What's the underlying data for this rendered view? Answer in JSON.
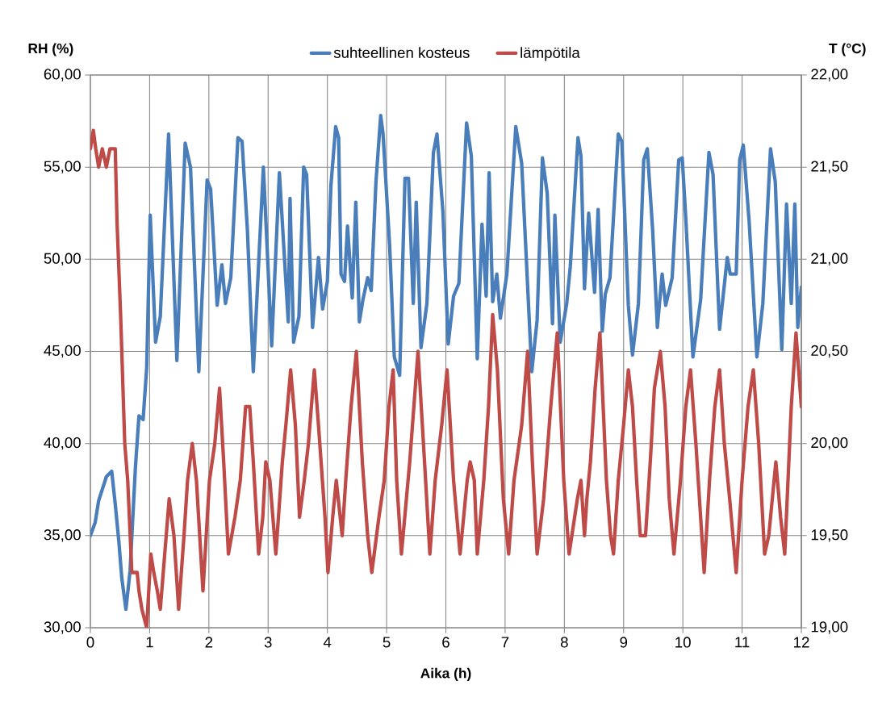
{
  "chart_data": {
    "type": "line",
    "xlabel": "Aika (h)",
    "ylabel": "RH (%)",
    "y2label": "T (°C)",
    "xlim": [
      0,
      12
    ],
    "xticks": [
      0,
      1,
      2,
      3,
      4,
      5,
      6,
      7,
      8,
      9,
      10,
      11,
      12
    ],
    "ylim": [
      30,
      60
    ],
    "yticks": [
      {
        "value": 30,
        "label": "30,00"
      },
      {
        "value": 35,
        "label": "35,00"
      },
      {
        "value": 40,
        "label": "40,00"
      },
      {
        "value": 45,
        "label": "45,00"
      },
      {
        "value": 50,
        "label": "50,00"
      },
      {
        "value": 55,
        "label": "55,00"
      },
      {
        "value": 60,
        "label": "60,00"
      }
    ],
    "y2lim": [
      19,
      22
    ],
    "y2ticks": [
      {
        "value": 19,
        "label": "19,00"
      },
      {
        "value": 19.5,
        "label": "19,50"
      },
      {
        "value": 20,
        "label": "20,00"
      },
      {
        "value": 20.5,
        "label": "20,50"
      },
      {
        "value": 21,
        "label": "21,00"
      },
      {
        "value": 21.5,
        "label": "21,50"
      },
      {
        "value": 22,
        "label": "22,00"
      }
    ],
    "grid": true,
    "legend": "top",
    "marker": "none",
    "line_style": "solid",
    "series": [
      {
        "name": "suhteellinen kosteus",
        "color": "#4a7ebb",
        "x": [
          0,
          0.08,
          0.14,
          0.27,
          0.36,
          0.42,
          0.48,
          0.53,
          0.6,
          0.67,
          0.76,
          0.82,
          0.89,
          0.95,
          1.01,
          1.1,
          1.18,
          1.32,
          1.46,
          1.6,
          1.69,
          1.83,
          1.97,
          2.03,
          2.14,
          2.22,
          2.28,
          2.37,
          2.49,
          2.56,
          2.65,
          2.75,
          2.92,
          3.06,
          3.19,
          3.34,
          3.37,
          3.43,
          3.52,
          3.6,
          3.65,
          3.75,
          3.85,
          3.92,
          4.0,
          4.06,
          4.14,
          4.19,
          4.23,
          4.29,
          4.34,
          4.42,
          4.48,
          4.54,
          4.6,
          4.68,
          4.74,
          4.82,
          4.9,
          4.94,
          5.05,
          5.13,
          5.22,
          5.31,
          5.37,
          5.45,
          5.5,
          5.58,
          5.68,
          5.79,
          5.85,
          5.95,
          6.04,
          6.13,
          6.22,
          6.35,
          6.43,
          6.53,
          6.61,
          6.68,
          6.73,
          6.79,
          6.86,
          6.92,
          7.03,
          7.18,
          7.28,
          7.45,
          7.54,
          7.63,
          7.71,
          7.8,
          7.84,
          7.93,
          8.04,
          8.1,
          8.23,
          8.28,
          8.34,
          8.41,
          8.51,
          8.57,
          8.64,
          8.69,
          8.77,
          8.91,
          8.97,
          9.08,
          9.15,
          9.25,
          9.34,
          9.4,
          9.49,
          9.57,
          9.65,
          9.71,
          9.82,
          9.93,
          9.99,
          10.05,
          10.17,
          10.3,
          10.44,
          10.51,
          10.62,
          10.75,
          10.8,
          10.9,
          10.96,
          11.02,
          11.12,
          11.25,
          11.35,
          11.48,
          11.56,
          11.67,
          11.75,
          11.83,
          11.89,
          11.94,
          12.0
        ],
        "values": [
          35.0,
          35.7,
          36.9,
          38.2,
          38.5,
          36.7,
          34.7,
          32.7,
          31.0,
          33.1,
          38.7,
          41.5,
          41.3,
          44.1,
          52.4,
          45.5,
          46.9,
          56.8,
          44.5,
          56.3,
          55.0,
          43.9,
          54.3,
          53.8,
          47.5,
          49.7,
          47.6,
          49.0,
          56.6,
          56.4,
          51.6,
          43.9,
          55.0,
          45.3,
          54.7,
          46.6,
          53.3,
          45.5,
          46.9,
          55.0,
          54.6,
          46.3,
          50.1,
          47.3,
          48.8,
          54.0,
          57.2,
          56.6,
          49.2,
          48.8,
          51.8,
          47.9,
          53.1,
          46.6,
          47.8,
          49.0,
          48.3,
          54.2,
          57.8,
          56.8,
          50.8,
          44.7,
          43.7,
          54.4,
          54.4,
          47.6,
          53.1,
          45.2,
          47.6,
          55.8,
          56.8,
          52.6,
          45.4,
          48.0,
          48.7,
          57.4,
          55.6,
          44.6,
          51.9,
          48.0,
          54.7,
          47.7,
          49.2,
          46.8,
          49.2,
          57.2,
          55.2,
          43.9,
          46.7,
          55.5,
          53.6,
          46.5,
          52.4,
          45.5,
          47.6,
          49.6,
          56.6,
          55.6,
          48.4,
          52.5,
          48.2,
          52.7,
          46.1,
          48.1,
          49.0,
          56.8,
          56.4,
          47.5,
          44.8,
          47.6,
          55.4,
          56.0,
          51.6,
          46.3,
          49.2,
          47.5,
          49.0,
          55.4,
          55.5,
          52.2,
          44.7,
          47.8,
          55.8,
          54.6,
          46.2,
          50.1,
          49.2,
          49.2,
          55.4,
          56.2,
          52.0,
          44.7,
          47.6,
          56.0,
          54.2,
          45.1,
          53.0,
          47.6,
          53.0,
          46.3,
          48.5
        ]
      },
      {
        "name": "lämpötila",
        "color": "#be4b48",
        "axis": "y2",
        "x": [
          0,
          0.05,
          0.09,
          0.14,
          0.2,
          0.27,
          0.33,
          0.42,
          0.45,
          0.51,
          0.58,
          0.63,
          0.7,
          0.79,
          0.82,
          0.87,
          0.95,
          1.02,
          1.07,
          1.13,
          1.18,
          1.23,
          1.33,
          1.41,
          1.49,
          1.58,
          1.64,
          1.72,
          1.79,
          1.9,
          2.01,
          2.1,
          2.18,
          2.25,
          2.33,
          2.44,
          2.53,
          2.62,
          2.69,
          2.75,
          2.84,
          2.91,
          2.96,
          3.03,
          3.13,
          3.24,
          3.3,
          3.38,
          3.46,
          3.53,
          3.61,
          3.68,
          3.78,
          3.85,
          3.96,
          4.01,
          4.09,
          4.15,
          4.25,
          4.31,
          4.4,
          4.49,
          4.59,
          4.68,
          4.75,
          4.87,
          4.96,
          5.04,
          5.11,
          5.17,
          5.25,
          5.39,
          5.53,
          5.64,
          5.73,
          5.82,
          5.93,
          6.02,
          6.13,
          6.24,
          6.36,
          6.41,
          6.48,
          6.53,
          6.64,
          6.72,
          6.79,
          6.87,
          6.97,
          7.06,
          7.15,
          7.28,
          7.38,
          7.46,
          7.54,
          7.65,
          7.77,
          7.88,
          7.99,
          8.08,
          8.22,
          8.28,
          8.34,
          8.38,
          8.44,
          8.52,
          8.6,
          8.71,
          8.78,
          8.83,
          8.91,
          9.0,
          9.08,
          9.15,
          9.22,
          9.28,
          9.37,
          9.45,
          9.52,
          9.62,
          9.7,
          9.77,
          9.85,
          9.96,
          10.05,
          10.13,
          10.22,
          10.28,
          10.36,
          10.45,
          10.54,
          10.62,
          10.7,
          10.79,
          10.9,
          11.0,
          11.1,
          11.19,
          11.28,
          11.38,
          11.45,
          11.57,
          11.65,
          11.72,
          11.83,
          11.91,
          12.0
        ],
        "values": [
          21.6,
          21.7,
          21.6,
          21.5,
          21.6,
          21.5,
          21.6,
          21.6,
          21.2,
          20.7,
          20.0,
          19.8,
          19.3,
          19.3,
          19.2,
          19.1,
          19.0,
          19.4,
          19.3,
          19.2,
          19.1,
          19.3,
          19.7,
          19.5,
          19.1,
          19.5,
          19.8,
          20.0,
          19.8,
          19.2,
          19.8,
          20.0,
          20.3,
          19.9,
          19.4,
          19.6,
          19.8,
          20.2,
          20.2,
          19.9,
          19.4,
          19.6,
          19.9,
          19.8,
          19.4,
          19.9,
          20.1,
          20.4,
          20.1,
          19.6,
          19.8,
          20.0,
          20.4,
          20.1,
          19.6,
          19.3,
          19.6,
          19.8,
          19.5,
          19.8,
          20.2,
          20.5,
          19.9,
          19.5,
          19.3,
          19.6,
          19.8,
          20.2,
          20.4,
          19.8,
          19.4,
          19.9,
          20.5,
          19.9,
          19.4,
          19.8,
          20.1,
          20.4,
          19.8,
          19.4,
          19.8,
          19.9,
          19.8,
          19.4,
          19.8,
          20.2,
          20.7,
          20.4,
          19.7,
          19.4,
          19.8,
          20.1,
          20.5,
          19.9,
          19.4,
          19.7,
          20.2,
          20.6,
          19.8,
          19.4,
          19.7,
          19.8,
          19.5,
          19.7,
          19.9,
          20.3,
          20.6,
          19.8,
          19.5,
          19.4,
          19.8,
          20.1,
          20.4,
          20.2,
          19.8,
          19.5,
          19.5,
          19.9,
          20.3,
          20.5,
          20.2,
          19.7,
          19.4,
          19.8,
          20.2,
          20.4,
          20.0,
          19.7,
          19.3,
          19.8,
          20.2,
          20.4,
          20.0,
          19.7,
          19.3,
          19.8,
          20.2,
          20.4,
          20.0,
          19.4,
          19.5,
          19.9,
          19.6,
          19.4,
          20.2,
          20.6,
          20.2
        ]
      }
    ]
  }
}
